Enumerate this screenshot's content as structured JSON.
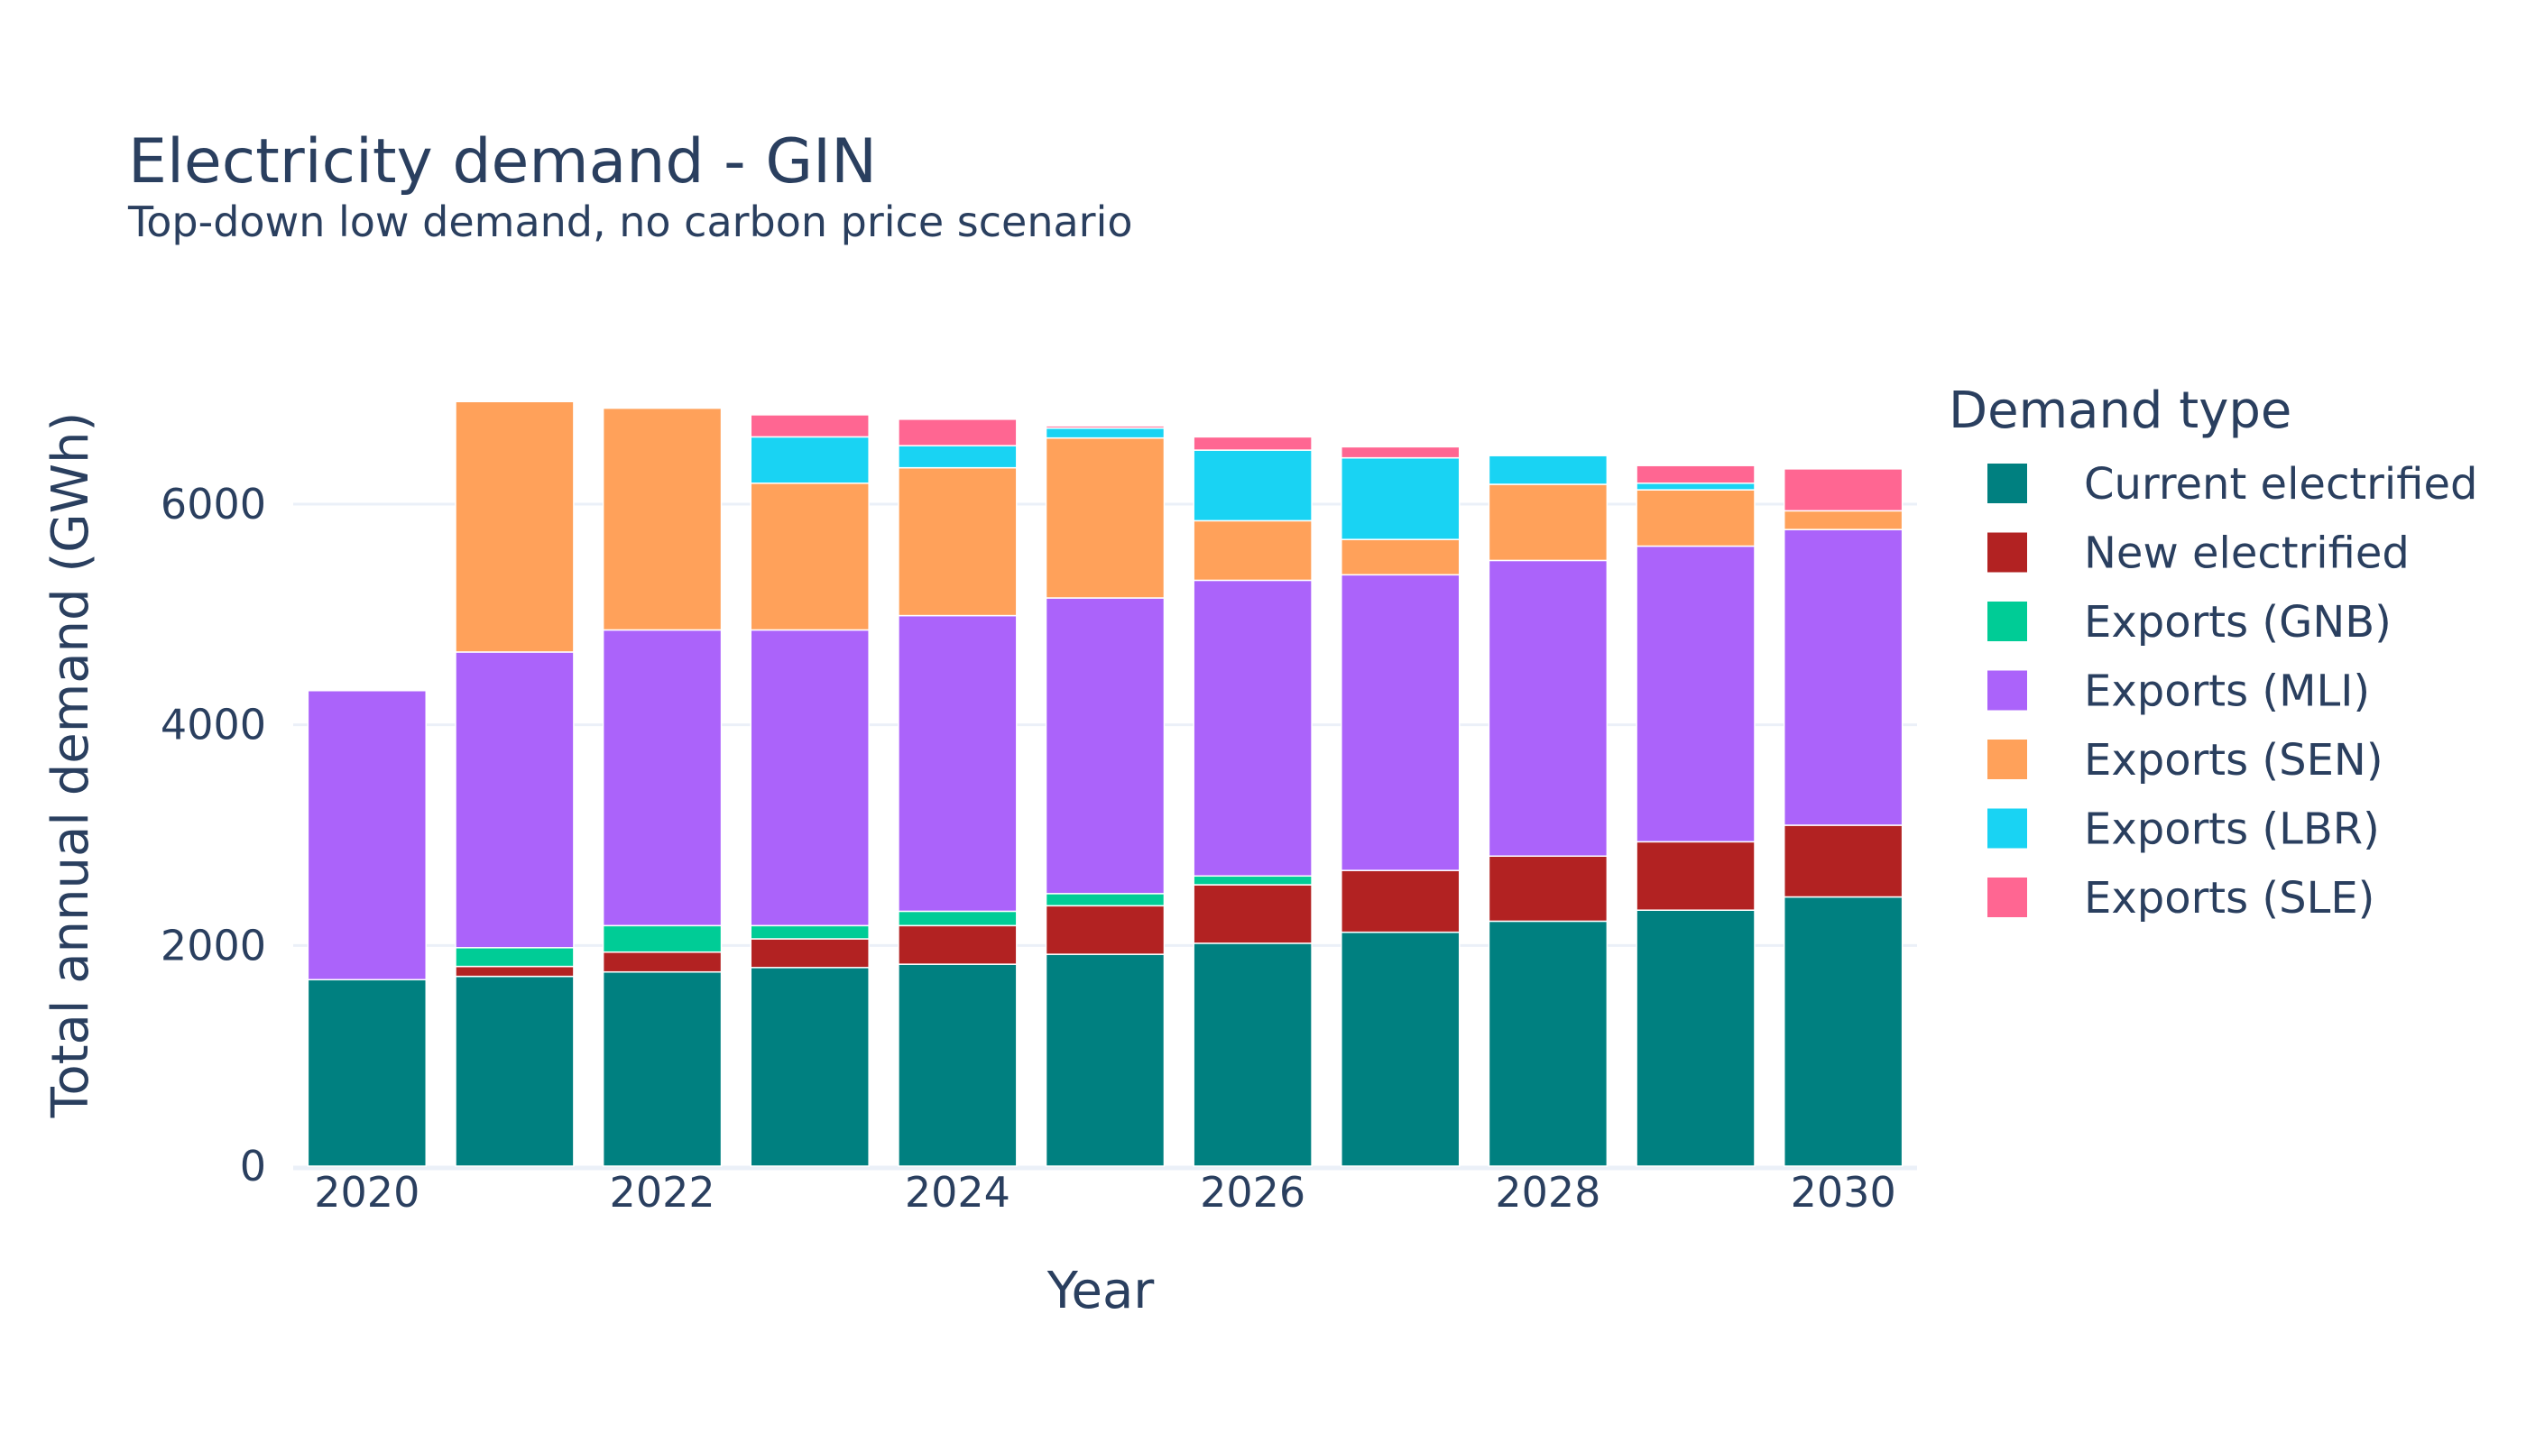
{
  "chart_data": {
    "type": "bar",
    "stacked": true,
    "title": "Electricity demand - GIN",
    "subtitle": "Top-down low demand, no carbon price scenario",
    "xlabel": "Year",
    "ylabel": "Total annual demand (GWh)",
    "legend_title": "Demand type",
    "legend_position": "right",
    "categories": [
      2020,
      2021,
      2022,
      2023,
      2024,
      2025,
      2026,
      2027,
      2028,
      2029,
      2030
    ],
    "x_ticks": [
      "2020",
      "2022",
      "2024",
      "2026",
      "2028",
      "2030"
    ],
    "y_ticks": [
      0,
      2000,
      4000,
      6000
    ],
    "y_tick_labels": [
      "0",
      "2000",
      "4000",
      "6000"
    ],
    "ylim": [
      0,
      7300
    ],
    "grid": true,
    "series": [
      {
        "name": "Current electrified",
        "color": "#008080",
        "values": [
          1690,
          1720,
          1760,
          1800,
          1830,
          1920,
          2020,
          2120,
          2220,
          2320,
          2440
        ]
      },
      {
        "name": "New electrified",
        "color": "#b22222",
        "values": [
          0,
          90,
          180,
          260,
          350,
          440,
          530,
          560,
          590,
          620,
          650
        ]
      },
      {
        "name": "Exports (GNB)",
        "color": "#00cc96",
        "values": [
          0,
          170,
          240,
          120,
          130,
          110,
          80,
          0,
          0,
          0,
          0
        ]
      },
      {
        "name": "Exports (MLI)",
        "color": "#ab63fa",
        "values": [
          2620,
          2680,
          2680,
          2680,
          2680,
          2680,
          2680,
          2680,
          2680,
          2680,
          2680
        ]
      },
      {
        "name": "Exports (SEN)",
        "color": "#ffa15a",
        "values": [
          0,
          2270,
          2010,
          1330,
          1340,
          1450,
          540,
          320,
          690,
          510,
          170
        ]
      },
      {
        "name": "Exports (LBR)",
        "color": "#19d3f3",
        "values": [
          0,
          0,
          0,
          420,
          200,
          90,
          640,
          740,
          260,
          60,
          0
        ]
      },
      {
        "name": "Exports (SLE)",
        "color": "#ff6692",
        "values": [
          0,
          0,
          0,
          200,
          240,
          20,
          120,
          100,
          0,
          160,
          380
        ]
      }
    ]
  }
}
